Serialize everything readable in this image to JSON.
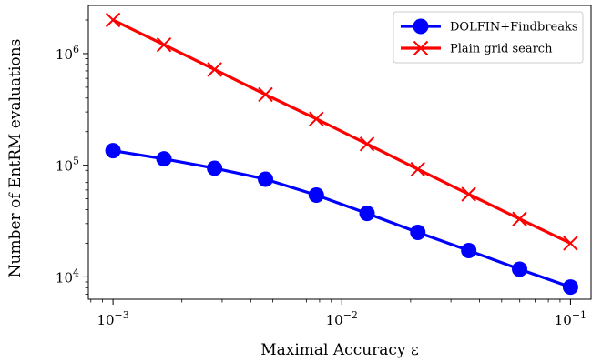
{
  "chart_data": {
    "type": "line",
    "xlabel": "Maximal Accuracy ε",
    "ylabel": "Number of EntRM evaluations",
    "xscale": "log",
    "yscale": "log",
    "xlim": [
      0.00078,
      0.123
    ],
    "ylim": [
      6300,
      2700000
    ],
    "x_ticks": [
      {
        "value": 0.001,
        "base": "10",
        "exp": "−3"
      },
      {
        "value": 0.01,
        "base": "10",
        "exp": "−2"
      },
      {
        "value": 0.1,
        "base": "10",
        "exp": "−1"
      }
    ],
    "y_ticks": [
      {
        "value": 10000,
        "base": "10",
        "exp": "4"
      },
      {
        "value": 100000,
        "base": "10",
        "exp": "5"
      },
      {
        "value": 1000000,
        "base": "10",
        "exp": "6"
      }
    ],
    "grid": false,
    "legend_position": "top-right",
    "x": [
      0.001,
      0.00167,
      0.00278,
      0.00464,
      0.00774,
      0.0129,
      0.0215,
      0.0359,
      0.0599,
      0.1
    ],
    "series": [
      {
        "name": "DOLFIN+Findbreaks",
        "color": "#0000ff",
        "marker": "circle",
        "values": [
          135000,
          114000,
          94000,
          75000,
          54000,
          37000,
          25000,
          17200,
          11700,
          8100
        ]
      },
      {
        "name": "Plain grid search",
        "color": "#ff0000",
        "marker": "x",
        "values": [
          2000000,
          1200000,
          720000,
          430000,
          260000,
          155000,
          92000,
          55000,
          33000,
          20000
        ]
      }
    ]
  }
}
